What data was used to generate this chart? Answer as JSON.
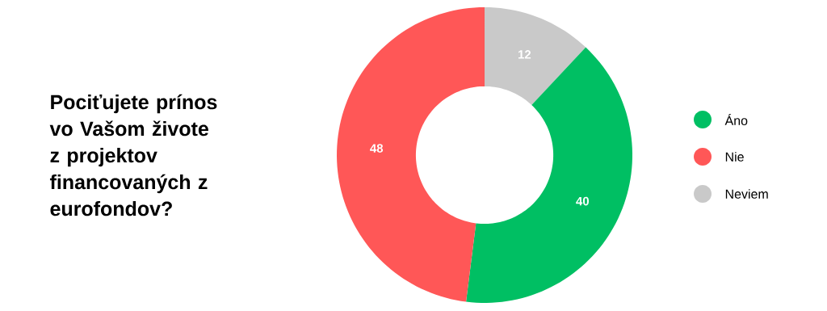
{
  "chart_data": {
    "type": "donut",
    "title": "Pociťujete prínos vo Vašom živote z projektov financovaných z eurofondov?",
    "categories": [
      "Áno",
      "Nie",
      "Neviem"
    ],
    "values": [
      40,
      48,
      12
    ],
    "colors": [
      "#00bf63",
      "#ff5757",
      "#c9c9c9"
    ],
    "data_labels": true,
    "legend": "right"
  }
}
